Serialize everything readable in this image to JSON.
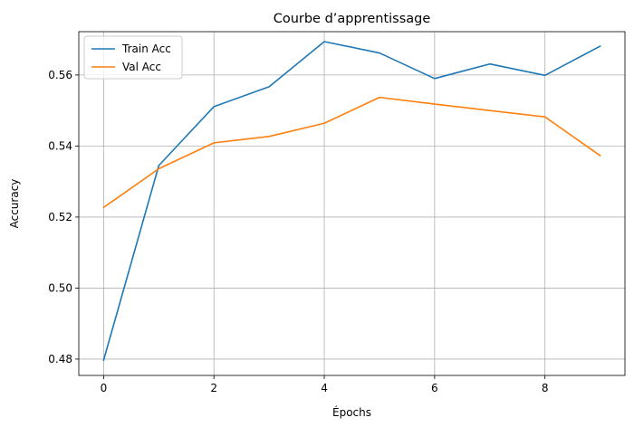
{
  "chart_data": {
    "type": "line",
    "title": "Courbe d’apprentissage",
    "xlabel": "Épochs",
    "ylabel": "Accuracy",
    "x": [
      0,
      1,
      2,
      3,
      4,
      5,
      6,
      7,
      8,
      9
    ],
    "xlim": [
      -0.45,
      9.45
    ],
    "ylim": [
      0.4754,
      0.5722
    ],
    "xticks": [
      0,
      2,
      4,
      6,
      8
    ],
    "xtick_labels": [
      "0",
      "2",
      "4",
      "6",
      "8"
    ],
    "yticks": [
      0.48,
      0.5,
      0.52,
      0.54,
      0.56
    ],
    "ytick_labels": [
      "0.48",
      "0.50",
      "0.52",
      "0.54",
      "0.56"
    ],
    "grid": true,
    "legend_position": "top-left",
    "series": [
      {
        "name": "Train Acc",
        "color": "#1f77b4",
        "values": [
          0.4797,
          0.5345,
          0.5511,
          0.5567,
          0.5694,
          0.5662,
          0.559,
          0.5631,
          0.5599,
          0.5681
        ]
      },
      {
        "name": "Val Acc",
        "color": "#ff7f0e",
        "values": [
          0.5227,
          0.5336,
          0.5409,
          0.5427,
          0.5464,
          0.5537,
          0.5518,
          0.55,
          0.5482,
          0.5373
        ]
      }
    ]
  }
}
